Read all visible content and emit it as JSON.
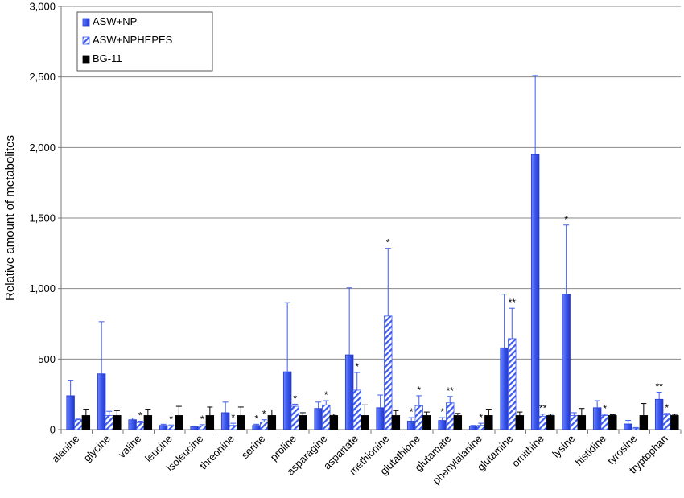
{
  "chart_data": {
    "type": "bar",
    "ylabel": "Relative amount of metabolites",
    "ylim": [
      0,
      3000
    ],
    "yticks": [
      "0",
      "500",
      "1,000",
      "1,500",
      "2,000",
      "2,500",
      "3,000"
    ],
    "grid": true,
    "legend_position": "top-left",
    "categories": [
      "alanine",
      "glycine",
      "valine",
      "leucine",
      "isoleucine",
      "threonine",
      "serine",
      "proline",
      "asparagine",
      "aspartate",
      "methionine",
      "glutathione",
      "glutamate",
      "phenylalanine",
      "glutamine",
      "ornithine",
      "lysine",
      "histidine",
      "tyrosine",
      "tryptophan"
    ],
    "series": [
      {
        "name": "ASW+NP",
        "color": "#3d5bf0",
        "pattern": "solid",
        "values": [
          240,
          395,
          70,
          30,
          20,
          120,
          30,
          410,
          150,
          530,
          155,
          60,
          65,
          25,
          580,
          1950,
          960,
          155,
          40,
          215
        ],
        "errors": [
          110,
          370,
          12,
          8,
          6,
          75,
          8,
          490,
          45,
          475,
          90,
          25,
          20,
          5,
          380,
          560,
          490,
          50,
          25,
          50
        ],
        "stars": [
          "",
          "",
          "",
          "",
          "",
          "",
          "*",
          "",
          "",
          "",
          "",
          "*",
          "*",
          "",
          "",
          "",
          "*",
          "",
          "",
          "**"
        ]
      },
      {
        "name": "ASW+NPHEPES",
        "color": "#3d5bf0",
        "pattern": "hatched",
        "values": [
          70,
          100,
          50,
          25,
          25,
          30,
          55,
          165,
          175,
          280,
          805,
          170,
          190,
          30,
          645,
          95,
          100,
          100,
          10,
          105
        ],
        "errors": [
          5,
          30,
          10,
          8,
          10,
          15,
          15,
          15,
          30,
          125,
          480,
          70,
          45,
          15,
          215,
          15,
          20,
          8,
          5,
          10
        ],
        "stars": [
          "",
          "",
          "*",
          "*",
          "*",
          "*",
          "*",
          "*",
          "*",
          "*",
          "*",
          "*",
          "**",
          "*",
          "**",
          "**",
          "",
          "*",
          "",
          "*"
        ]
      },
      {
        "name": "BG-11",
        "color": "#000000",
        "pattern": "solid",
        "values": [
          100,
          100,
          100,
          100,
          100,
          100,
          100,
          100,
          100,
          100,
          100,
          100,
          100,
          100,
          100,
          100,
          100,
          100,
          100,
          100
        ],
        "errors": [
          45,
          35,
          45,
          65,
          60,
          60,
          40,
          20,
          10,
          75,
          35,
          25,
          15,
          45,
          25,
          10,
          50,
          5,
          85,
          8
        ],
        "stars": [
          "",
          "",
          "",
          "",
          "",
          "",
          "",
          "",
          "",
          "",
          "",
          "",
          "",
          "",
          "",
          "",
          "",
          "",
          "",
          ""
        ]
      }
    ]
  }
}
